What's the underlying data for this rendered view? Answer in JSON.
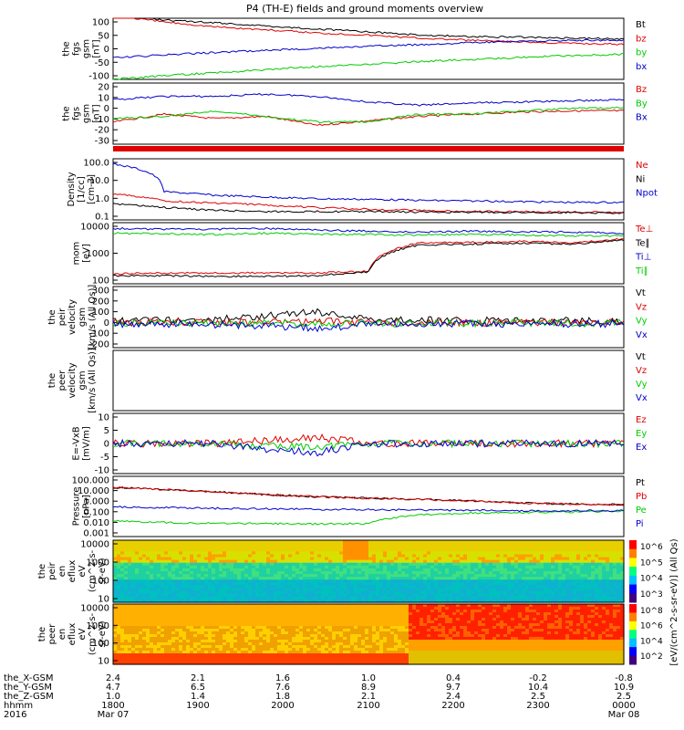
{
  "title": "P4 (TH-E) fields and ground moments overview",
  "colors": {
    "black": "#000000",
    "red": "#e00000",
    "green": "#00cc00",
    "blue": "#0000cc"
  },
  "colorbar_unit": "[eV/(cm^2-s-sr-eV)] (All Qs)",
  "chart_data": [
    {
      "type": "line",
      "panel": "fgs-gsm",
      "ylabel": [
        "the",
        "fgs",
        "gsm",
        "[nT]"
      ],
      "ytick_labels": [
        "100",
        "50",
        "0",
        "-50",
        "-100"
      ],
      "ylim": [
        -100,
        100
      ],
      "series": [
        {
          "name": "Bt",
          "color": "black",
          "values": [
            110,
            95,
            85,
            75,
            65,
            55,
            45,
            40,
            38,
            35,
            33
          ]
        },
        {
          "name": "bz",
          "color": "red",
          "values": [
            108,
            88,
            72,
            62,
            52,
            45,
            35,
            28,
            22,
            18,
            15
          ]
        },
        {
          "name": "by",
          "color": "green",
          "values": [
            -100,
            -88,
            -78,
            -68,
            -58,
            -50,
            -42,
            -35,
            -28,
            -22,
            -18
          ]
        },
        {
          "name": "bx",
          "color": "blue",
          "values": [
            -30,
            -20,
            -12,
            -5,
            2,
            8,
            14,
            20,
            24,
            28,
            28
          ]
        }
      ]
    },
    {
      "type": "line",
      "panel": "fgs-dsl",
      "ylabel": [
        "the",
        "fgs",
        "gsm",
        "[nT]"
      ],
      "ytick_labels": [
        "20",
        "10",
        "0",
        "-10",
        "-20",
        "-30"
      ],
      "ylim": [
        -35,
        20
      ],
      "series": [
        {
          "name": "Bz",
          "color": "red",
          "values": [
            -15,
            -8,
            -12,
            -10,
            -18,
            -14,
            -10,
            -8,
            -6,
            -5,
            -5
          ]
        },
        {
          "name": "By",
          "color": "green",
          "values": [
            -12,
            -10,
            -5,
            -10,
            -15,
            -15,
            -8,
            -8,
            -5,
            -3,
            -2
          ]
        },
        {
          "name": "Bx",
          "color": "blue",
          "values": [
            5,
            8,
            8,
            10,
            8,
            3,
            0,
            2,
            3,
            4,
            5
          ]
        }
      ]
    },
    {
      "type": "line",
      "panel": "density",
      "ylabel": [
        "Density",
        "[1/cc]",
        "[cm-3]"
      ],
      "yscale": "log",
      "ytick_labels": [
        "100.0",
        "10.0",
        "1.0",
        "0.1"
      ],
      "ylim": [
        0.1,
        300
      ],
      "series": [
        {
          "name": "Ne",
          "color": "red",
          "values": [
            3,
            1.2,
            0.9,
            0.7,
            0.5,
            0.4,
            0.35,
            0.3,
            0.3,
            0.28,
            0.27
          ]
        },
        {
          "name": "Ni",
          "color": "black",
          "values": [
            0.8,
            0.5,
            0.35,
            0.3,
            0.3,
            0.3,
            0.28,
            0.27,
            0.27,
            0.26,
            0.25
          ]
        },
        {
          "name": "Npot",
          "color": "blue",
          "values": [
            150,
            4,
            2.5,
            2,
            1.6,
            1.5,
            1.3,
            1.2,
            1.1,
            1.0,
            1.0
          ]
        }
      ]
    },
    {
      "type": "line",
      "panel": "temperature",
      "ylabel": [
        "mom",
        "[eV]"
      ],
      "yscale": "log",
      "ytick_labels": [
        "10000",
        "1000",
        "100"
      ],
      "ylim": [
        40,
        12000
      ],
      "series": [
        {
          "name": "Te⊥",
          "color": "red",
          "values": [
            100,
            110,
            110,
            110,
            110,
            130,
            1800,
            1900,
            2100,
            1800,
            2600
          ]
        },
        {
          "name": "Te∥",
          "color": "black",
          "values": [
            85,
            85,
            80,
            80,
            85,
            120,
            1500,
            1600,
            1800,
            1600,
            2300
          ]
        },
        {
          "name": "Ti⊥",
          "color": "blue",
          "values": [
            7000,
            6500,
            6500,
            7000,
            6000,
            5500,
            5000,
            5500,
            5000,
            5000,
            4500
          ]
        },
        {
          "name": "Ti∥",
          "color": "green",
          "values": [
            4500,
            4200,
            4000,
            4500,
            4000,
            4000,
            3800,
            4000,
            3800,
            3500,
            3500
          ]
        }
      ]
    },
    {
      "type": "line",
      "panel": "peir-velocity",
      "ylabel": [
        "the",
        "peir",
        "velocity",
        "gsm",
        "[km/s (All Qs)]"
      ],
      "ytick_labels": [
        "300",
        "200",
        "100",
        "0",
        "-100",
        "-200"
      ],
      "ylim": [
        -200,
        300
      ],
      "series": [
        {
          "name": "Vt",
          "color": "black",
          "values": [
            20,
            25,
            30,
            60,
            90,
            30,
            25,
            20,
            20,
            20,
            20
          ]
        },
        {
          "name": "Vz",
          "color": "red",
          "values": [
            5,
            10,
            5,
            10,
            20,
            5,
            5,
            5,
            5,
            5,
            5
          ]
        },
        {
          "name": "Vy",
          "color": "green",
          "values": [
            0,
            0,
            0,
            0,
            0,
            0,
            0,
            0,
            0,
            0,
            0
          ]
        },
        {
          "name": "Vx",
          "color": "blue",
          "values": [
            -5,
            -5,
            -10,
            -20,
            -40,
            -10,
            -5,
            -5,
            -5,
            -5,
            -5
          ]
        }
      ]
    },
    {
      "type": "line",
      "panel": "peer-velocity",
      "ylabel": [
        "the",
        "peer",
        "velocity",
        "gsm",
        "[km/s (All Qs)]"
      ],
      "ytick_labels": [],
      "series": [
        {
          "name": "Vt",
          "color": "black",
          "values": []
        },
        {
          "name": "Vz",
          "color": "red",
          "values": []
        },
        {
          "name": "Vy",
          "color": "green",
          "values": []
        },
        {
          "name": "Vx",
          "color": "blue",
          "values": []
        }
      ]
    },
    {
      "type": "line",
      "panel": "efield",
      "ylabel": [
        "E=-VxB",
        "[mV/m]"
      ],
      "ytick_labels": [
        "10",
        "5",
        "0",
        "-5",
        "-10"
      ],
      "ylim": [
        -10,
        10
      ],
      "series": [
        {
          "name": "Ez",
          "color": "red",
          "values": [
            0,
            0,
            0,
            1,
            2,
            0,
            0,
            0,
            0,
            0,
            0
          ]
        },
        {
          "name": "Ey",
          "color": "green",
          "values": [
            0,
            0,
            0,
            -1,
            -1,
            0,
            0,
            0,
            0,
            0,
            0
          ]
        },
        {
          "name": "Ex",
          "color": "blue",
          "values": [
            0,
            0,
            0,
            -2,
            -3,
            0,
            0,
            0,
            0,
            0,
            0
          ]
        }
      ]
    },
    {
      "type": "line",
      "panel": "pressure",
      "ylabel": [
        "Pressure",
        "[nPa]"
      ],
      "yscale": "log",
      "ytick_labels": [
        "100.000",
        "10.000",
        "1.000",
        "0.100",
        "0.010",
        "0.001"
      ],
      "ylim": [
        0.001,
        100
      ],
      "series": [
        {
          "name": "Pt",
          "color": "black",
          "values": [
            12,
            8,
            5,
            3,
            2,
            1.5,
            1.2,
            0.9,
            0.6,
            0.5,
            0.45
          ]
        },
        {
          "name": "Pb",
          "color": "red",
          "values": [
            12,
            8,
            5,
            3,
            2,
            1.5,
            1.2,
            0.9,
            0.6,
            0.5,
            0.45
          ]
        },
        {
          "name": "Pe",
          "color": "green",
          "values": [
            0.02,
            0.015,
            0.012,
            0.012,
            0.011,
            0.012,
            0.06,
            0.09,
            0.1,
            0.11,
            0.13
          ]
        },
        {
          "name": "Pi",
          "color": "blue",
          "values": [
            0.3,
            0.25,
            0.22,
            0.2,
            0.18,
            0.17,
            0.16,
            0.15,
            0.14,
            0.14,
            0.14
          ]
        }
      ]
    },
    {
      "type": "heatmap",
      "panel": "peir-spectrogram",
      "ylabel": [
        "the",
        "peir",
        "en",
        "eflux",
        "eV",
        "(cm^2-s-",
        "sr-eV)"
      ],
      "ytick_labels": [
        "10000",
        "1000",
        "100",
        "10"
      ],
      "yscale": "log"
    },
    {
      "type": "heatmap",
      "panel": "peer-spectrogram",
      "ylabel": [
        "the",
        "peer",
        "en",
        "eflux",
        "eV",
        "(cm^2-s-",
        "sr-eV)"
      ],
      "ytick_labels": [
        "10000",
        "1000",
        "100",
        "10"
      ],
      "yscale": "log"
    }
  ],
  "colorbars": [
    {
      "tick_labels": [
        "10^6",
        "10^5",
        "10^4",
        "10^3"
      ]
    },
    {
      "tick_labels": [
        "10^8",
        "10^6",
        "10^4",
        "10^2"
      ]
    }
  ],
  "ephemeris": {
    "rows": [
      {
        "label": "the_X-GSM",
        "values": [
          "2.4",
          "2.1",
          "1.6",
          "1.0",
          "0.4",
          "-0.2",
          "-0.8"
        ]
      },
      {
        "label": "the_Y-GSM",
        "values": [
          "4.7",
          "6.5",
          "7.6",
          "8.9",
          "9.7",
          "10.4",
          "10.9"
        ]
      },
      {
        "label": "the_Z-GSM",
        "values": [
          "1.0",
          "1.4",
          "1.8",
          "2.1",
          "2.4",
          "2.5",
          "2.5"
        ]
      },
      {
        "label": "hhmm",
        "values": [
          "1800",
          "1900",
          "2000",
          "2100",
          "2200",
          "2300",
          "0000"
        ]
      }
    ],
    "year": "2016",
    "date_start": "Mar 07",
    "date_end": "Mar 08"
  }
}
